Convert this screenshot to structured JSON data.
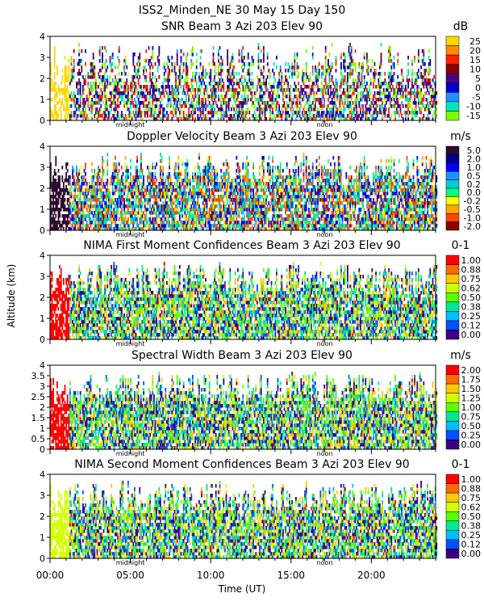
{
  "figure": {
    "header": "ISS2_Minden_NE  30 May 15 Day 150",
    "ylabel": "Altitude (km)",
    "xlabel": "Time (UT)",
    "xticks": [
      "00:00",
      "05:00",
      "10:00",
      "15:00",
      "20:00"
    ],
    "midnight_label": "midnight",
    "noon_label": "noon"
  },
  "chart_data": [
    {
      "type": "heatmap",
      "title": "SNR Beam 3 Azi 203 Elev 90",
      "unit": "dB",
      "ylabel": "Altitude (km)",
      "xlabel": "Time (UT)",
      "xlim": [
        "00:00",
        "24:00"
      ],
      "ylim": [
        0,
        4
      ],
      "yticks": [
        "0",
        "1",
        "2",
        "3",
        "4"
      ],
      "colorbar": {
        "labels": [
          "25",
          "20",
          "15",
          "10",
          "5",
          "0",
          "-5",
          "-10",
          "-15"
        ],
        "colors": [
          "#ffd700",
          "#ff8c00",
          "#ff2000",
          "#8b0000",
          "#4b0082",
          "#0000cd",
          "#1e90ff",
          "#00e5c0",
          "#7cfc00"
        ]
      }
    },
    {
      "type": "heatmap",
      "title": "Doppler Velocity Beam 3 Azi 203 Elev 90",
      "unit": "m/s",
      "ylabel": "Altitude (km)",
      "xlabel": "Time (UT)",
      "xlim": [
        "00:00",
        "24:00"
      ],
      "ylim": [
        0,
        4
      ],
      "yticks": [
        "0",
        "1",
        "2",
        "3",
        "4"
      ],
      "colorbar": {
        "labels": [
          "5.0",
          "2.0",
          "1.0",
          "0.5",
          "0.2",
          "0.0",
          "-0.2",
          "-0.5",
          "-1.0",
          "-2.0"
        ],
        "colors": [
          "#2b0a2e",
          "#00008b",
          "#0000ff",
          "#1e90ff",
          "#00ced1",
          "#00ff7f",
          "#ffff00",
          "#ffa500",
          "#ff4500",
          "#8b0000"
        ]
      }
    },
    {
      "type": "heatmap",
      "title": "NIMA First Moment Confidences Beam 3 Azi 203 Elev 90",
      "unit": "0-1",
      "ylabel": "Altitude (km)",
      "xlabel": "Time (UT)",
      "xlim": [
        "00:00",
        "24:00"
      ],
      "ylim": [
        0,
        4
      ],
      "yticks": [
        "0",
        "1",
        "2",
        "3",
        "4"
      ],
      "colorbar": {
        "labels": [
          "1.00",
          "0.88",
          "0.75",
          "0.62",
          "0.50",
          "0.38",
          "0.25",
          "0.12",
          "0.00"
        ],
        "colors": [
          "#ff0000",
          "#ff6a00",
          "#ffc800",
          "#d4ff00",
          "#5cff00",
          "#00e890",
          "#00bfff",
          "#0050ff",
          "#3a0080"
        ]
      }
    },
    {
      "type": "heatmap",
      "title": "Spectral Width Beam 3 Azi 203 Elev 90",
      "unit": "m/s",
      "ylabel": "Altitude (km)",
      "xlabel": "Time (UT)",
      "xlim": [
        "00:00",
        "24:00"
      ],
      "ylim": [
        0,
        4
      ],
      "yticks": [
        "0",
        "0.5",
        "1",
        "1.5",
        "2",
        "2.5",
        "3",
        "3.5",
        "4"
      ],
      "colorbar": {
        "labels": [
          "2.00",
          "1.75",
          "1.50",
          "1.25",
          "1.00",
          "0.75",
          "0.50",
          "0.25",
          "0.00"
        ],
        "colors": [
          "#ff0000",
          "#ff6a00",
          "#ffc800",
          "#d4ff00",
          "#5cff00",
          "#00e890",
          "#00bfff",
          "#0050ff",
          "#3a0080"
        ]
      }
    },
    {
      "type": "heatmap",
      "title": "NIMA Second Moment Confidences Beam 3 Azi 203 Elev 90",
      "unit": "0-1",
      "ylabel": "Altitude (km)",
      "xlabel": "Time (UT)",
      "xlim": [
        "00:00",
        "24:00"
      ],
      "ylim": [
        0,
        4
      ],
      "yticks": [
        "0",
        "1",
        "2",
        "3",
        "4"
      ],
      "colorbar": {
        "labels": [
          "1.00",
          "0.88",
          "0.75",
          "0.62",
          "0.50",
          "0.38",
          "0.25",
          "0.12",
          "0.00"
        ],
        "colors": [
          "#ff0000",
          "#ff6a00",
          "#ffc800",
          "#d4ff00",
          "#5cff00",
          "#00e890",
          "#00bfff",
          "#0050ff",
          "#3a0080"
        ]
      }
    }
  ]
}
